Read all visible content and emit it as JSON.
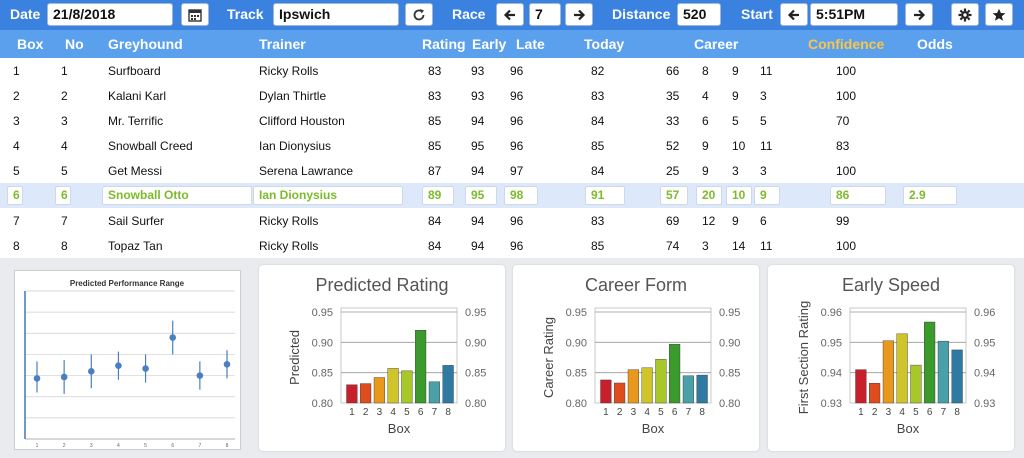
{
  "toolbar": {
    "date_label": "Date",
    "date_value": "21/8/2018",
    "calendar_icon": "calendar-icon",
    "track_label": "Track",
    "track_value": "Ipswich",
    "refresh_icon": "refresh-icon",
    "race_label": "Race",
    "race_value": "7",
    "distance_label": "Distance",
    "distance_value": "520",
    "start_label": "Start",
    "start_value": "5:51PM",
    "prev_icon": "arrow-left-icon",
    "next_icon": "arrow-right-icon",
    "settings_icon": "gear-icon",
    "favorite_icon": "star-icon"
  },
  "table": {
    "headers": {
      "box": "Box",
      "no": "No",
      "greyhound": "Greyhound",
      "trainer": "Trainer",
      "rating": "Rating",
      "early": "Early",
      "late": "Late",
      "today": "Today",
      "career": "Career",
      "confidence": "Confidence",
      "odds": "Odds"
    },
    "rows": [
      {
        "box": "1",
        "no": "1",
        "greyhound": "Surfboard",
        "trainer": "Ricky Rolls",
        "rating": "83",
        "early": "93",
        "late": "96",
        "today": "82",
        "c1": "66",
        "c2": "8",
        "c3": "9",
        "c4": "11",
        "confidence": "100",
        "odds": ""
      },
      {
        "box": "2",
        "no": "2",
        "greyhound": "Kalani Karl",
        "trainer": "Dylan Thirtle",
        "rating": "83",
        "early": "93",
        "late": "96",
        "today": "83",
        "c1": "35",
        "c2": "4",
        "c3": "9",
        "c4": "3",
        "confidence": "100",
        "odds": ""
      },
      {
        "box": "3",
        "no": "3",
        "greyhound": "Mr. Terrific",
        "trainer": "Clifford Houston",
        "rating": "85",
        "early": "94",
        "late": "96",
        "today": "84",
        "c1": "33",
        "c2": "6",
        "c3": "5",
        "c4": "5",
        "confidence": "70",
        "odds": ""
      },
      {
        "box": "4",
        "no": "4",
        "greyhound": "Snowball Creed",
        "trainer": "Ian Dionysius",
        "rating": "85",
        "early": "95",
        "late": "96",
        "today": "85",
        "c1": "52",
        "c2": "9",
        "c3": "10",
        "c4": "11",
        "confidence": "83",
        "odds": ""
      },
      {
        "box": "5",
        "no": "5",
        "greyhound": "Get Messi",
        "trainer": "Serena Lawrance",
        "rating": "87",
        "early": "94",
        "late": "97",
        "today": "84",
        "c1": "25",
        "c2": "9",
        "c3": "3",
        "c4": "3",
        "confidence": "100",
        "odds": ""
      },
      {
        "box": "6",
        "no": "6",
        "greyhound": "Snowball Otto",
        "trainer": "Ian Dionysius",
        "rating": "89",
        "early": "95",
        "late": "98",
        "today": "91",
        "c1": "57",
        "c2": "20",
        "c3": "10",
        "c4": "9",
        "confidence": "86",
        "odds": "2.9"
      },
      {
        "box": "7",
        "no": "7",
        "greyhound": "Sail Surfer",
        "trainer": "Ricky Rolls",
        "rating": "84",
        "early": "94",
        "late": "96",
        "today": "83",
        "c1": "69",
        "c2": "12",
        "c3": "9",
        "c4": "6",
        "confidence": "99",
        "odds": ""
      },
      {
        "box": "8",
        "no": "8",
        "greyhound": "Topaz Tan",
        "trainer": "Ricky Rolls",
        "rating": "84",
        "early": "94",
        "late": "96",
        "today": "85",
        "c1": "74",
        "c2": "3",
        "c3": "14",
        "c4": "11",
        "confidence": "100",
        "odds": ""
      }
    ],
    "selected_row": 5,
    "colors": {
      "header_bg": "#5ba0ec",
      "toolbar_bg": "#3b82e0",
      "selected_text": "#7dbb2a",
      "confidence_header": "#f7c64b"
    }
  },
  "chart_data": [
    {
      "type": "scatter",
      "title": "Predicted Performance Range",
      "x": [
        1,
        2,
        3,
        4,
        5,
        6,
        7,
        8
      ],
      "x_tick_labels": [
        "1",
        "2",
        "3",
        "4",
        "5",
        "6",
        "7",
        "8"
      ],
      "y": [
        0.43,
        0.44,
        0.48,
        0.52,
        0.5,
        0.72,
        0.45,
        0.53
      ],
      "y_low": [
        0.33,
        0.32,
        0.36,
        0.42,
        0.4,
        0.6,
        0.35,
        0.43
      ],
      "y_high": [
        0.55,
        0.56,
        0.6,
        0.62,
        0.6,
        0.84,
        0.55,
        0.63
      ],
      "ylim": [
        0,
        1.05
      ],
      "grid": true,
      "color": "#4a7fc1"
    },
    {
      "type": "bar",
      "title": "Predicted Rating",
      "xlabel": "Box",
      "ylabel": "Predicted",
      "categories": [
        "1",
        "2",
        "3",
        "4",
        "5",
        "6",
        "7",
        "8"
      ],
      "values": [
        0.83,
        0.832,
        0.842,
        0.857,
        0.853,
        0.92,
        0.835,
        0.862
      ],
      "ylim": [
        0.8,
        0.95
      ],
      "yticks": [
        "0.80",
        "0.85",
        "0.90",
        "0.95"
      ],
      "grid": true
    },
    {
      "type": "bar",
      "title": "Career Form",
      "xlabel": "Box",
      "ylabel": "Career Rating",
      "categories": [
        "1",
        "2",
        "3",
        "4",
        "5",
        "6",
        "7",
        "8"
      ],
      "values": [
        0.838,
        0.833,
        0.855,
        0.858,
        0.872,
        0.897,
        0.845,
        0.846
      ],
      "ylim": [
        0.8,
        0.95
      ],
      "yticks": [
        "0.80",
        "0.85",
        "0.90",
        "0.95"
      ],
      "grid": true
    },
    {
      "type": "bar",
      "title": "Early Speed",
      "xlabel": "Box",
      "ylabel": "First Section Rating",
      "categories": [
        "1",
        "2",
        "3",
        "4",
        "5",
        "6",
        "7",
        "8"
      ],
      "values": [
        0.941,
        0.9365,
        0.9505,
        0.9528,
        0.9425,
        0.9567,
        0.9504,
        0.9475
      ],
      "ylim": [
        0.93,
        0.96
      ],
      "yticks": [
        "0.93",
        "0.94",
        "0.95",
        "0.96"
      ],
      "grid": true
    }
  ],
  "bar_colors": [
    "#c8202a",
    "#df4d1f",
    "#e9981e",
    "#cfc42a",
    "#a8c829",
    "#3b9a2c",
    "#4aa0a8",
    "#2e7aa3"
  ]
}
